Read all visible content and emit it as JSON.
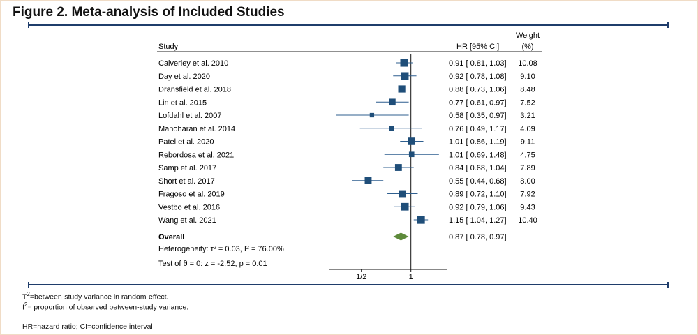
{
  "figure": {
    "title": "Figure 2. Meta-analysis of Included Studies"
  },
  "colors": {
    "marker": "#1f4e79",
    "ci_line": "#2f5f8f",
    "diamond": "#5d8a3a",
    "rule": "#1f3d6b"
  },
  "footnotes": {
    "tau_sym": "T",
    "tau_sup": "2",
    "tau_text": "=between-study variance in random-effect.",
    "i_sym": "I",
    "i_sup": "2",
    "i_text": "= proportion of observed between-study variance.",
    "abbrev": "HR=hazard ratio; CI=confidence interval"
  },
  "chart_data": {
    "type": "forest",
    "headers": {
      "study": "Study",
      "hr": "HR [95% CI]",
      "weight_top": "Weight",
      "weight_unit": "(%)"
    },
    "x_scale": "log",
    "x_range": [
      0.32,
      1.65
    ],
    "x_ticks": [
      {
        "value": 0.5,
        "label": "1/2"
      },
      {
        "value": 1,
        "label": "1"
      }
    ],
    "studies": [
      {
        "name": "Calverley et al. 2010",
        "hr": 0.91,
        "lo": 0.81,
        "hi": 1.03,
        "hr_text": "0.91 [ 0.81,  1.03]",
        "weight": 10.08,
        "weight_text": "10.08"
      },
      {
        "name": "Day et al. 2020",
        "hr": 0.92,
        "lo": 0.78,
        "hi": 1.08,
        "hr_text": "0.92 [ 0.78,  1.08]",
        "weight": 9.1,
        "weight_text": "9.10"
      },
      {
        "name": "Dransfield et al. 2018",
        "hr": 0.88,
        "lo": 0.73,
        "hi": 1.06,
        "hr_text": "0.88 [ 0.73,  1.06]",
        "weight": 8.48,
        "weight_text": "8.48"
      },
      {
        "name": "Lin et al. 2015",
        "hr": 0.77,
        "lo": 0.61,
        "hi": 0.97,
        "hr_text": "0.77 [ 0.61,  0.97]",
        "weight": 7.52,
        "weight_text": "7.52"
      },
      {
        "name": "Lofdahl et al. 2007",
        "hr": 0.58,
        "lo": 0.35,
        "hi": 0.97,
        "hr_text": "0.58 [ 0.35,  0.97]",
        "weight": 3.21,
        "weight_text": "3.21"
      },
      {
        "name": "Manoharan et al. 2014",
        "hr": 0.76,
        "lo": 0.49,
        "hi": 1.17,
        "hr_text": "0.76 [ 0.49,  1.17]",
        "weight": 4.09,
        "weight_text": "4.09"
      },
      {
        "name": "Patel et al. 2020",
        "hr": 1.01,
        "lo": 0.86,
        "hi": 1.19,
        "hr_text": "1.01 [ 0.86,  1.19]",
        "weight": 9.11,
        "weight_text": "9.11"
      },
      {
        "name": "Rebordosa et al. 2021",
        "hr": 1.01,
        "lo": 0.69,
        "hi": 1.48,
        "hr_text": "1.01 [ 0.69,  1.48]",
        "weight": 4.75,
        "weight_text": "4.75"
      },
      {
        "name": "Samp et al. 2017",
        "hr": 0.84,
        "lo": 0.68,
        "hi": 1.04,
        "hr_text": "0.84 [ 0.68,  1.04]",
        "weight": 7.89,
        "weight_text": "7.89"
      },
      {
        "name": "Short et al. 2017",
        "hr": 0.55,
        "lo": 0.44,
        "hi": 0.68,
        "hr_text": "0.55 [ 0.44,  0.68]",
        "weight": 8.0,
        "weight_text": "8.00"
      },
      {
        "name": "Fragoso et al. 2019",
        "hr": 0.89,
        "lo": 0.72,
        "hi": 1.1,
        "hr_text": "0.89 [ 0.72,  1.10]",
        "weight": 7.92,
        "weight_text": "7.92"
      },
      {
        "name": "Vestbo et al. 2016",
        "hr": 0.92,
        "lo": 0.79,
        "hi": 1.06,
        "hr_text": "0.92 [ 0.79,  1.06]",
        "weight": 9.43,
        "weight_text": "9.43"
      },
      {
        "name": "Wang et al. 2021",
        "hr": 1.15,
        "lo": 1.04,
        "hi": 1.27,
        "hr_text": "1.15 [ 1.04,  1.27]",
        "weight": 10.4,
        "weight_text": "10.40"
      }
    ],
    "overall": {
      "label": "Overall",
      "hr": 0.87,
      "lo": 0.78,
      "hi": 0.97,
      "hr_text": "0.87 [ 0.78,  0.97]"
    },
    "heterogeneity": {
      "prefix": "Heterogeneity: τ",
      "sup1": "2",
      "middle": " = 0.03, I",
      "sup2": "2",
      "suffix": " = 76.00%"
    },
    "test": "Test of θ = 0: z = -2.52, p = 0.01"
  }
}
